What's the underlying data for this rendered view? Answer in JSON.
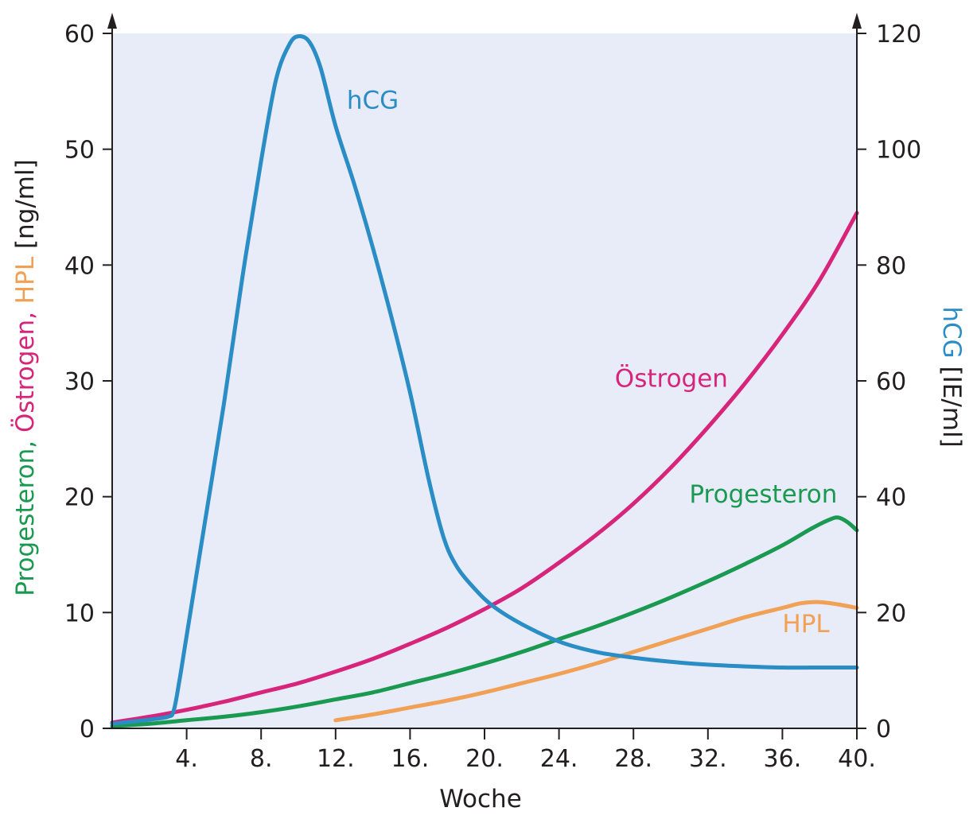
{
  "chart_data": {
    "type": "line",
    "title": "",
    "xlabel": "Woche",
    "xlim": [
      0,
      40
    ],
    "x_ticks": [
      {
        "value": 4,
        "label": "4."
      },
      {
        "value": 8,
        "label": "8."
      },
      {
        "value": 12,
        "label": "12."
      },
      {
        "value": 16,
        "label": "16."
      },
      {
        "value": 20,
        "label": "20."
      },
      {
        "value": 24,
        "label": "24."
      },
      {
        "value": 28,
        "label": "28."
      },
      {
        "value": 32,
        "label": "32."
      },
      {
        "value": 36,
        "label": "36."
      },
      {
        "value": 40,
        "label": "40."
      }
    ],
    "y_left": {
      "label_parts": [
        {
          "text": "Progesteron, ",
          "color": "#1a9950"
        },
        {
          "text": "Östrogen, ",
          "color": "#d6257a"
        },
        {
          "text": "HPL",
          "color": "#f0a155"
        },
        {
          "text": " [ng/ml]",
          "color": "#231f20"
        }
      ],
      "ylim": [
        0,
        60
      ],
      "ticks": [
        0,
        10,
        20,
        30,
        40,
        50,
        60
      ]
    },
    "y_right": {
      "label_parts": [
        {
          "text": "hCG",
          "color": "#2a8dc5"
        },
        {
          "text": " [IE/ml]",
          "color": "#231f20"
        }
      ],
      "ylim": [
        0,
        120
      ],
      "ticks": [
        0,
        20,
        40,
        60,
        80,
        100,
        120
      ]
    },
    "x_zero_label": "0",
    "grid": false,
    "background_color": "#e8ebf8",
    "series": [
      {
        "name": "hCG",
        "axis": "right",
        "color": "#2a8dc5",
        "label_anchor": {
          "x": 12.6,
          "y": 107
        },
        "points": [
          [
            0,
            0.8
          ],
          [
            2,
            1.5
          ],
          [
            3,
            2
          ],
          [
            3.3,
            3
          ],
          [
            3.6,
            8
          ],
          [
            4,
            16
          ],
          [
            5,
            36
          ],
          [
            6,
            56
          ],
          [
            7,
            78
          ],
          [
            8,
            98
          ],
          [
            8.8,
            112
          ],
          [
            9.5,
            118
          ],
          [
            10,
            119.5
          ],
          [
            10.6,
            118.5
          ],
          [
            11.2,
            114
          ],
          [
            12,
            104
          ],
          [
            13,
            94
          ],
          [
            14,
            83
          ],
          [
            15,
            71
          ],
          [
            16,
            58
          ],
          [
            17,
            43
          ],
          [
            17.8,
            33
          ],
          [
            18.5,
            28
          ],
          [
            19.5,
            24
          ],
          [
            20.5,
            21
          ],
          [
            22,
            18
          ],
          [
            24,
            15
          ],
          [
            26,
            13.2
          ],
          [
            28,
            12.2
          ],
          [
            30,
            11.5
          ],
          [
            32,
            11
          ],
          [
            34,
            10.7
          ],
          [
            36,
            10.5
          ],
          [
            38,
            10.5
          ],
          [
            40,
            10.5
          ]
        ]
      },
      {
        "name": "Östrogen",
        "axis": "left",
        "color": "#d6257a",
        "label_anchor": {
          "x": 27,
          "y": 29.5
        },
        "points": [
          [
            0,
            0.5
          ],
          [
            2,
            1.0
          ],
          [
            4,
            1.6
          ],
          [
            6,
            2.3
          ],
          [
            8,
            3.1
          ],
          [
            10,
            3.9
          ],
          [
            12,
            4.9
          ],
          [
            14,
            6.0
          ],
          [
            16,
            7.3
          ],
          [
            18,
            8.7
          ],
          [
            20,
            10.3
          ],
          [
            22,
            12.1
          ],
          [
            24,
            14.3
          ],
          [
            26,
            16.7
          ],
          [
            28,
            19.4
          ],
          [
            30,
            22.5
          ],
          [
            32,
            26.0
          ],
          [
            34,
            29.8
          ],
          [
            36,
            34.0
          ],
          [
            38,
            38.7
          ],
          [
            40,
            44.5
          ]
        ]
      },
      {
        "name": "Progesteron",
        "axis": "left",
        "color": "#1a9950",
        "label_anchor": {
          "x": 31,
          "y": 19.5
        },
        "points": [
          [
            0,
            0.2
          ],
          [
            2,
            0.4
          ],
          [
            4,
            0.7
          ],
          [
            6,
            1.0
          ],
          [
            8,
            1.4
          ],
          [
            10,
            1.9
          ],
          [
            12,
            2.5
          ],
          [
            14,
            3.1
          ],
          [
            16,
            3.9
          ],
          [
            18,
            4.7
          ],
          [
            20,
            5.6
          ],
          [
            22,
            6.6
          ],
          [
            24,
            7.7
          ],
          [
            26,
            8.8
          ],
          [
            28,
            10.0
          ],
          [
            30,
            11.3
          ],
          [
            32,
            12.7
          ],
          [
            34,
            14.2
          ],
          [
            36,
            15.8
          ],
          [
            37.5,
            17.2
          ],
          [
            38.5,
            18.0
          ],
          [
            39,
            18.2
          ],
          [
            39.5,
            17.8
          ],
          [
            40,
            17.1
          ]
        ]
      },
      {
        "name": "HPL",
        "axis": "left",
        "color": "#f0a155",
        "label_anchor": {
          "x": 36,
          "y": 8.3
        },
        "points": [
          [
            12,
            0.7
          ],
          [
            14,
            1.2
          ],
          [
            16,
            1.8
          ],
          [
            18,
            2.4
          ],
          [
            20,
            3.1
          ],
          [
            22,
            3.9
          ],
          [
            24,
            4.7
          ],
          [
            26,
            5.6
          ],
          [
            28,
            6.6
          ],
          [
            30,
            7.6
          ],
          [
            32,
            8.6
          ],
          [
            34,
            9.6
          ],
          [
            36,
            10.4
          ],
          [
            37,
            10.8
          ],
          [
            38,
            10.9
          ],
          [
            39,
            10.7
          ],
          [
            40,
            10.4
          ]
        ]
      }
    ]
  }
}
